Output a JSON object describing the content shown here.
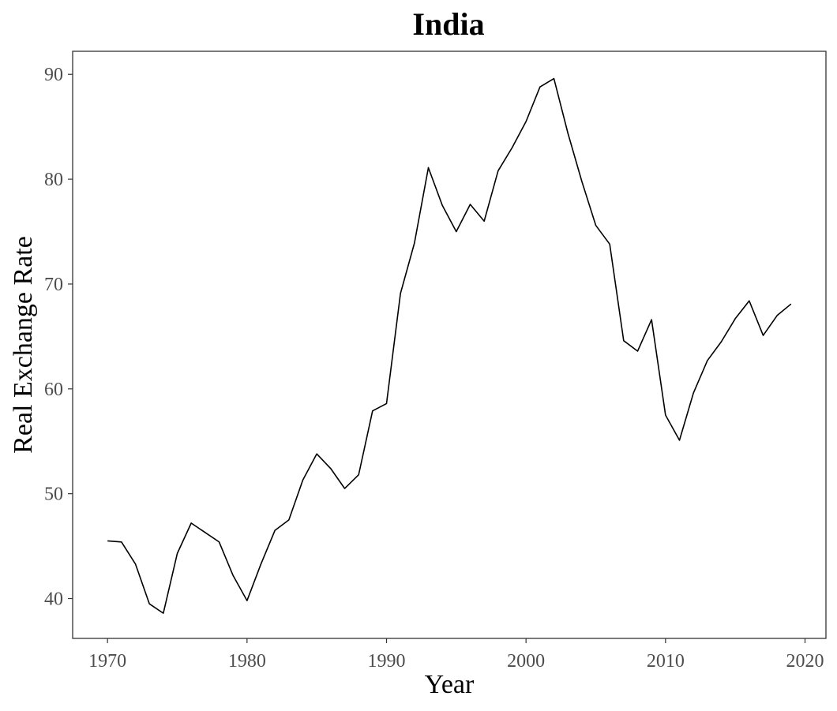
{
  "chart_data": {
    "type": "line",
    "title": "India",
    "xlabel": "Year",
    "ylabel": "Real Exchange Rate",
    "xlim": [
      1967.5,
      2021.5
    ],
    "ylim": [
      36.2,
      92.2
    ],
    "xticks": [
      1970,
      1980,
      1990,
      2000,
      2010,
      2020
    ],
    "yticks": [
      40,
      50,
      60,
      70,
      80,
      90
    ],
    "grid": false,
    "legend": "none",
    "x": [
      1970,
      1971,
      1972,
      1973,
      1974,
      1975,
      1976,
      1977,
      1978,
      1979,
      1980,
      1981,
      1982,
      1983,
      1984,
      1985,
      1986,
      1987,
      1988,
      1989,
      1990,
      1991,
      1992,
      1993,
      1994,
      1995,
      1996,
      1997,
      1998,
      1999,
      2000,
      2001,
      2002,
      2003,
      2004,
      2005,
      2006,
      2007,
      2008,
      2009,
      2010,
      2011,
      2012,
      2013,
      2014,
      2015,
      2016,
      2017,
      2018,
      2019
    ],
    "series": [
      {
        "values": [
          45.5,
          45.4,
          43.3,
          39.5,
          38.6,
          44.3,
          47.2,
          46.3,
          45.4,
          42.2,
          39.8,
          43.3,
          46.5,
          47.5,
          51.3,
          53.8,
          52.4,
          50.5,
          51.8,
          57.9,
          58.6,
          69.1,
          73.9,
          81.1,
          77.5,
          75.0,
          77.6,
          76.0,
          80.8,
          83.0,
          85.5,
          88.8,
          89.6,
          84.4,
          79.8,
          75.6,
          73.8,
          64.6,
          63.6,
          66.6,
          57.5,
          55.1,
          59.6,
          62.7,
          64.5,
          66.7,
          68.4,
          65.1,
          67.0,
          68.1
        ],
        "color": "#000000"
      }
    ]
  }
}
